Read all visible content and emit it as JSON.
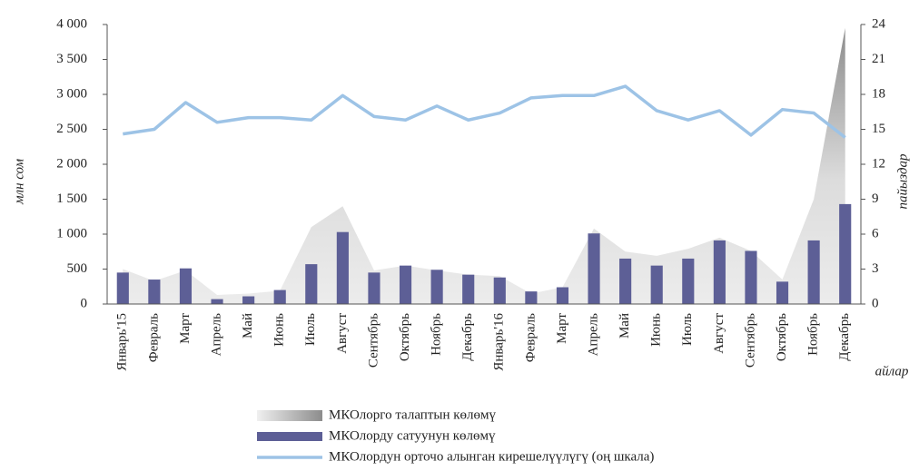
{
  "chart_data": {
    "type": "combo",
    "y_label": "млн сом",
    "y2_label": "пайыздар",
    "x_label": "айлар",
    "categories": [
      "Январь'15",
      "Февраль",
      "Март",
      "Апрель",
      "Май",
      "Июнь",
      "Июль",
      "Август",
      "Сентябрь",
      "Октябрь",
      "Ноябрь",
      "Декабрь",
      "Январь'16",
      "Февраль",
      "Март",
      "Апрель",
      "Май",
      "Июнь",
      "Июль",
      "Август",
      "Сентябрь",
      "Октябрь",
      "Ноябрь",
      "Декабрь"
    ],
    "series": [
      {
        "name": "МКОлорго талаптын көлөмү",
        "type": "area",
        "color": "#d9d9d9",
        "values": [
          500,
          330,
          480,
          130,
          150,
          190,
          1100,
          1400,
          480,
          550,
          480,
          420,
          400,
          150,
          240,
          1080,
          750,
          690,
          790,
          950,
          760,
          350,
          1500,
          3950
        ]
      },
      {
        "name": "МКОлорду сатуунун көлөмү",
        "type": "bar",
        "color": "#5d5f96",
        "values": [
          450,
          350,
          510,
          70,
          110,
          200,
          570,
          1030,
          450,
          550,
          490,
          420,
          380,
          180,
          240,
          1010,
          650,
          550,
          650,
          910,
          760,
          320,
          910,
          1430
        ]
      },
      {
        "name": "МКОлордун орточо алынган кирешелүүлүгү (оң шкала)",
        "type": "line",
        "axis": "y2",
        "color": "#9dc3e6",
        "values": [
          14.6,
          15.0,
          17.3,
          15.6,
          16.0,
          16.0,
          15.8,
          17.9,
          16.1,
          15.8,
          17.0,
          15.8,
          16.4,
          17.7,
          17.9,
          17.9,
          18.7,
          16.6,
          15.8,
          16.6,
          14.5,
          16.7,
          16.4,
          14.3
        ]
      }
    ],
    "ylim": [
      0,
      4000
    ],
    "yticks": [
      0,
      500,
      {
        "value": 1000,
        "label": "1 000"
      },
      {
        "value": 1500,
        "label": "1 500"
      },
      {
        "value": 2000,
        "label": "2 000"
      },
      {
        "value": 2500,
        "label": "2 500"
      },
      {
        "value": 3000,
        "label": "3 000"
      },
      {
        "value": 3500,
        "label": "3 500"
      },
      {
        "value": 4000,
        "label": "4 000"
      }
    ],
    "y2lim": [
      0,
      24
    ],
    "y2ticks": [
      0,
      3,
      6,
      9,
      12,
      15,
      18,
      21,
      24
    ],
    "grid": false
  }
}
